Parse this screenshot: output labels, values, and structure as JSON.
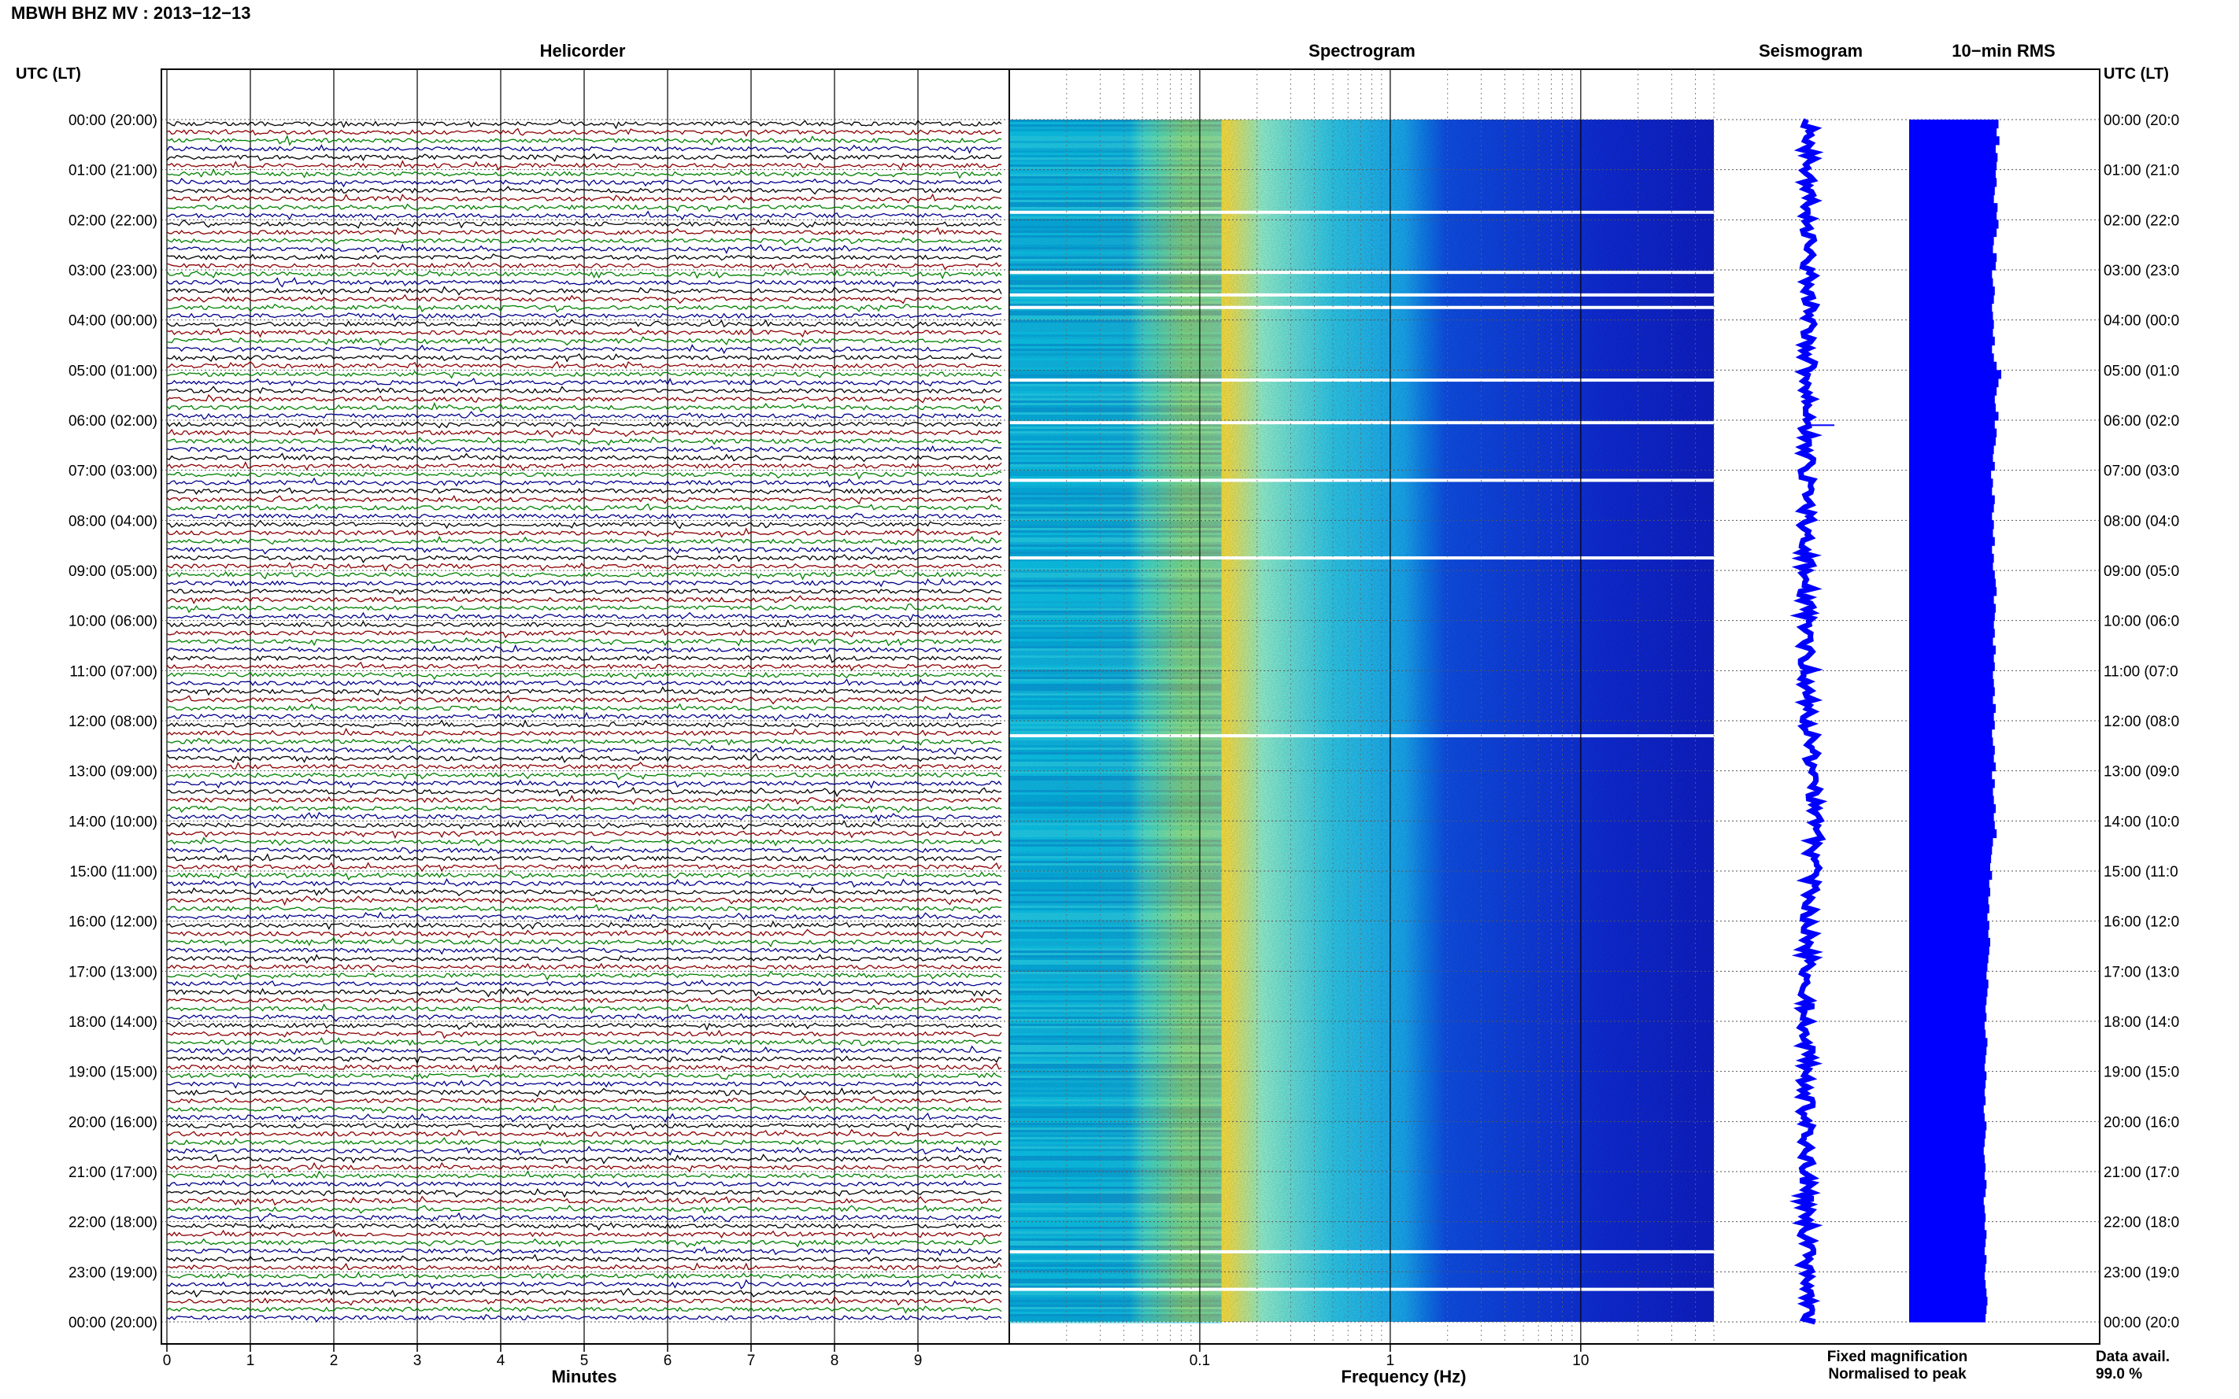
{
  "header": {
    "title": "MBWH BHZ MV : 2013−12−13"
  },
  "panels": {
    "helicorder_title": "Helicorder",
    "spectrogram_title": "Spectrogram",
    "seismogram_title": "Seismogram",
    "rms_title": "10−min RMS"
  },
  "time_axis": {
    "left_title": "UTC (LT)",
    "right_title": "UTC (LT)",
    "left_labels": [
      "00:00 (20:00)",
      "01:00 (21:00)",
      "02:00 (22:00)",
      "03:00 (23:00)",
      "04:00 (00:00)",
      "05:00 (01:00)",
      "06:00 (02:00)",
      "07:00 (03:00)",
      "08:00 (04:00)",
      "09:00 (05:00)",
      "10:00 (06:00)",
      "11:00 (07:00)",
      "12:00 (08:00)",
      "13:00 (09:00)",
      "14:00 (10:00)",
      "15:00 (11:00)",
      "16:00 (12:00)",
      "17:00 (13:00)",
      "18:00 (14:00)",
      "19:00 (15:00)",
      "20:00 (16:00)",
      "21:00 (17:00)",
      "22:00 (18:00)",
      "23:00 (19:00)",
      "00:00 (20:00)"
    ],
    "right_labels": [
      "00:00 (20:0",
      "01:00 (21:0",
      "02:00 (22:0",
      "03:00 (23:0",
      "04:00 (00:0",
      "05:00 (01:0",
      "06:00 (02:0",
      "07:00 (03:0",
      "08:00 (04:0",
      "09:00 (05:0",
      "10:00 (06:0",
      "11:00 (07:0",
      "12:00 (08:0",
      "13:00 (09:0",
      "14:00 (10:0",
      "15:00 (11:0",
      "16:00 (12:0",
      "17:00 (13:0",
      "18:00 (14:0",
      "19:00 (15:0",
      "20:00 (16:0",
      "21:00 (17:0",
      "22:00 (18:0",
      "23:00 (19:0",
      "00:00 (20:0"
    ]
  },
  "helicorder_axis": {
    "label": "Minutes",
    "ticks": [
      "0",
      "1",
      "2",
      "3",
      "4",
      "5",
      "6",
      "7",
      "8",
      "9"
    ]
  },
  "spectrogram_axis": {
    "label": "Frequency (Hz)",
    "ticks": [
      "0.1",
      "1",
      "10"
    ]
  },
  "legend": {
    "fixed": "Fixed magnification",
    "normalised": "Normalised to peak",
    "fixed_color": "#0000ff",
    "normalised_color": "#ff0000"
  },
  "availability": {
    "label": "Data avail.",
    "value": "99.0 %"
  },
  "colors": {
    "trace_cycle": [
      "#000000",
      "#8b0000",
      "#008000",
      "#00008b"
    ],
    "rms_bar": "#0000ff",
    "seismogram": "#0000ff"
  },
  "chart_data": [
    {
      "type": "line",
      "title": "Helicorder",
      "xlabel": "Minutes",
      "x_ticks": [
        0,
        1,
        2,
        3,
        4,
        5,
        6,
        7,
        8,
        9
      ],
      "xlim": [
        0,
        10
      ],
      "rows_per_hour": 6,
      "hours": 24,
      "series_color_cycle": [
        "black",
        "darkred",
        "green",
        "darkblue"
      ]
    },
    {
      "type": "heatmap",
      "title": "Spectrogram",
      "xlabel": "Frequency (Hz)",
      "x_scale": "log",
      "x_ticks": [
        0.1,
        1,
        10
      ],
      "xlim": [
        0.01,
        50
      ],
      "colormap": "jet",
      "peak_band_hz": [
        0.15,
        0.4
      ],
      "data_gaps_utc_hour": [
        1.85,
        3.05,
        3.5,
        3.75,
        5.2,
        6.05,
        7.2,
        8.75,
        12.3,
        22.6,
        23.35
      ]
    },
    {
      "type": "line",
      "title": "Seismogram",
      "notes": "Fixed magnification (blue) / Normalised to peak (red)"
    },
    {
      "type": "bar",
      "title": "10−min RMS",
      "orientation": "horizontal",
      "bins_utc_hour_start": [
        0,
        0.1667,
        0.3333,
        0.5,
        0.6667,
        0.8333,
        1,
        1.1667,
        1.3333,
        1.5,
        1.6667,
        1.8333,
        2,
        2.1667,
        2.3333,
        2.5,
        2.6667,
        2.8333,
        3,
        3.1667,
        3.3333,
        3.5,
        3.6667,
        3.8333,
        4,
        4.1667,
        4.3333,
        4.5,
        4.6667,
        4.8333,
        5,
        5.1667,
        5.3333,
        5.5,
        5.6667,
        5.8333,
        6,
        6.1667,
        6.3333,
        6.5,
        6.6667,
        6.8333,
        7,
        7.1667,
        7.3333,
        7.5,
        7.6667,
        7.8333,
        8,
        8.1667,
        8.3333,
        8.5,
        8.6667,
        8.8333,
        9,
        9.1667,
        9.3333,
        9.5,
        9.6667,
        9.8333,
        10,
        10.1667,
        10.3333,
        10.5,
        10.6667,
        10.8333,
        11,
        11.1667,
        11.3333,
        11.5,
        11.6667,
        11.8333,
        12,
        12.1667,
        12.3333,
        12.5,
        12.6667,
        12.8333,
        13,
        13.1667,
        13.3333,
        13.5,
        13.6667,
        13.8333,
        14,
        14.1667,
        14.3333,
        14.5,
        14.6667,
        14.8333,
        15,
        15.1667,
        15.3333,
        15.5,
        15.6667,
        15.8333,
        16,
        16.1667,
        16.3333,
        16.5,
        16.6667,
        16.8333,
        17,
        17.1667,
        17.3333,
        17.5,
        17.6667,
        17.8333,
        18,
        18.1667,
        18.3333,
        18.5,
        18.6667,
        18.8333,
        19,
        19.1667,
        19.3333,
        19.5,
        19.6667,
        19.8333,
        20,
        20.1667,
        20.3333,
        20.5,
        20.6667,
        20.8333,
        21,
        21.1667,
        21.3333,
        21.5,
        21.6667,
        21.8333,
        22,
        22.1667,
        22.3333,
        22.5,
        22.6667,
        22.8333,
        23,
        23.1667,
        23.3333,
        23.5,
        23.6667,
        23.8333
      ],
      "rms_relative": [
        0.97,
        0.95,
        0.98,
        0.94,
        0.96,
        0.95,
        0.94,
        0.95,
        0.93,
        0.92,
        0.96,
        0.95,
        0.97,
        0.95,
        0.92,
        0.91,
        0.95,
        0.94,
        0.9,
        0.91,
        0.93,
        0.92,
        0.9,
        0.91,
        0.92,
        0.91,
        0.93,
        0.9,
        0.92,
        0.95,
        1.0,
        0.97,
        0.95,
        0.93,
        0.94,
        0.97,
        0.93,
        0.95,
        0.94,
        0.92,
        0.91,
        0.93,
        0.89,
        0.91,
        0.9,
        0.93,
        0.92,
        0.9,
        0.92,
        0.91,
        0.93,
        0.9,
        0.92,
        0.91,
        0.93,
        0.94,
        0.95,
        0.92,
        0.94,
        0.93,
        0.92,
        0.93,
        0.91,
        0.94,
        0.92,
        0.93,
        0.91,
        0.92,
        0.93,
        0.91,
        0.94,
        0.92,
        0.93,
        0.9,
        0.91,
        0.93,
        0.92,
        0.94,
        0.9,
        0.93,
        0.91,
        0.92,
        0.94,
        0.92,
        0.93,
        0.95,
        0.91,
        0.9,
        0.89,
        0.88,
        0.9,
        0.87,
        0.88,
        0.86,
        0.87,
        0.85,
        0.87,
        0.86,
        0.88,
        0.87,
        0.86,
        0.85,
        0.84,
        0.86,
        0.85,
        0.84,
        0.83,
        0.84,
        0.82,
        0.83,
        0.85,
        0.84,
        0.83,
        0.82,
        0.84,
        0.83,
        0.82,
        0.83,
        0.81,
        0.82,
        0.84,
        0.83,
        0.82,
        0.81,
        0.82,
        0.83,
        0.82,
        0.84,
        0.83,
        0.81,
        0.82,
        0.83,
        0.82,
        0.84,
        0.83,
        0.82,
        0.84,
        0.83,
        0.82,
        0.83,
        0.84,
        0.85,
        0.84,
        0.83
      ]
    }
  ]
}
